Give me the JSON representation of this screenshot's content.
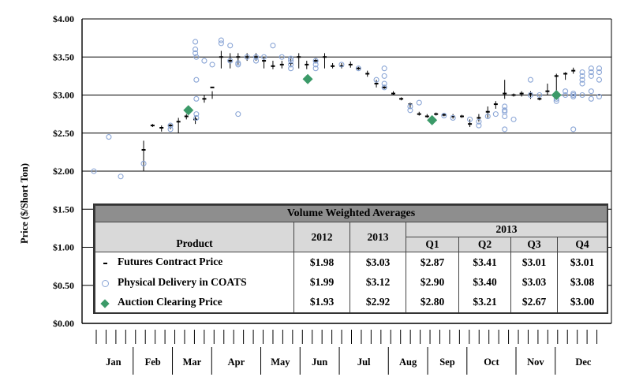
{
  "chart_data": {
    "type": "scatter",
    "title": "",
    "ylabel": "Price ($/Short Ton)",
    "xlabel": "",
    "ylim": [
      0,
      4
    ],
    "y_ticks": [
      "$0.00",
      "$0.50",
      "$1.00",
      "$1.50",
      "$2.00",
      "$2.50",
      "$3.00",
      "$3.50",
      "$4.00"
    ],
    "months": [
      "Jan",
      "Feb",
      "Mar",
      "Apr",
      "May",
      "Jun",
      "Jul",
      "Aug",
      "Sep",
      "Oct",
      "Nov",
      "Dec"
    ],
    "month_week_starts": [
      0,
      4,
      8,
      12,
      17,
      21,
      25,
      30,
      34,
      38,
      43,
      47
    ],
    "weeks": 52,
    "series": [
      {
        "name": "Futures Contract Price",
        "marker": "dash",
        "week": [
          5,
          5.9,
          6.8,
          7.7,
          8.5,
          9.3,
          10.2,
          11.1,
          11.9,
          12.8,
          13.7,
          14.5,
          15.4,
          16.3,
          17.1,
          18,
          18.9,
          19.8,
          20.6,
          21.4,
          22.3,
          23.2,
          24,
          24.9,
          25.8,
          26.6,
          27.5,
          28.4,
          29.2,
          30.1,
          30.9,
          31.8,
          32.7,
          33.5,
          34.4,
          35.2,
          36.1,
          37,
          37.8,
          38.7,
          39.6,
          40.4,
          41.3,
          42.2,
          43,
          43.9,
          44.8,
          45.6,
          46.5,
          47.4,
          48.2
        ],
        "value": [
          2.28,
          2.6,
          2.57,
          2.6,
          2.65,
          2.72,
          2.68,
          2.95,
          3.1,
          3.5,
          3.45,
          3.5,
          3.5,
          3.5,
          3.45,
          3.38,
          3.4,
          3.42,
          3.5,
          3.4,
          3.45,
          3.5,
          3.38,
          3.38,
          3.4,
          3.35,
          3.28,
          3.15,
          3.1,
          3.02,
          2.95,
          2.88,
          2.75,
          2.72,
          2.75,
          2.74,
          2.72,
          2.72,
          2.62,
          2.7,
          2.78,
          2.88,
          3.02,
          3,
          3.02,
          3.02,
          2.95,
          3.05,
          3.25,
          3.28,
          3.32
        ],
        "error_low": [
          2,
          2.58,
          2.52,
          2.55,
          2.5,
          2.68,
          2.62,
          2.9,
          2.95,
          3.35,
          3.35,
          3.4,
          3.45,
          3.45,
          3.35,
          3.34,
          3.35,
          3.38,
          3.35,
          3.34,
          3.42,
          3.35,
          3.35,
          3.35,
          3.36,
          3.33,
          3.24,
          3.1,
          3.08,
          3,
          2.93,
          2.82,
          2.73,
          2.7,
          2.73,
          2.72,
          2.69,
          2.7,
          2.58,
          2.65,
          2.7,
          2.82,
          2.95,
          2.98,
          2.98,
          2.95,
          2.93,
          3,
          3.05,
          3.2,
          3.28
        ],
        "error_high": [
          2.4,
          2.62,
          2.6,
          2.62,
          2.7,
          2.75,
          2.72,
          3,
          3.05,
          3.58,
          3.55,
          3.55,
          3.55,
          3.55,
          3.5,
          3.45,
          3.45,
          3.48,
          3.55,
          3.45,
          3.48,
          3.55,
          3.42,
          3.42,
          3.44,
          3.37,
          3.32,
          3.2,
          3.13,
          3.05,
          2.97,
          2.9,
          2.78,
          2.75,
          2.77,
          2.76,
          2.75,
          2.74,
          2.68,
          2.75,
          2.85,
          2.92,
          3.2,
          3.02,
          3.05,
          3.05,
          2.98,
          3.15,
          3.28,
          3.3,
          3.36
        ]
      },
      {
        "name": "Physical Delivery in COATS",
        "marker": "circle",
        "week": [
          0,
          1.5,
          2.7,
          5,
          7.7,
          7.7,
          10.2,
          10.2,
          10.2,
          10.3,
          10.3,
          10.3,
          10.3,
          10.3,
          11.1,
          11.9,
          12.8,
          12.8,
          13.7,
          13.7,
          14.5,
          14.5,
          14.5,
          15.4,
          16.3,
          16.3,
          17.1,
          18,
          18.9,
          19.8,
          19.8,
          19.8,
          19.8,
          22.3,
          22.3,
          22.3,
          24.9,
          26.6,
          28.4,
          29.2,
          29.2,
          29.2,
          29.2,
          31.8,
          31.8,
          32.7,
          35.2,
          36.1,
          37.8,
          38.7,
          38.7,
          39.6,
          40.4,
          41.3,
          41.3,
          41.3,
          41.3,
          41.3,
          42.2,
          43.9,
          43.9,
          44.8,
          46.5,
          46.5,
          47.4,
          47.4,
          48.2,
          48.2,
          48.2,
          48.2,
          49.1,
          49.1,
          49.1,
          49.1,
          49.1,
          50,
          50,
          50,
          50,
          50,
          50.8,
          50.8,
          50.8,
          50.8
        ],
        "value": [
          2,
          2.45,
          1.93,
          2.1,
          2.55,
          2.6,
          3.7,
          3.6,
          3.55,
          3.2,
          2.95,
          2.75,
          2.7,
          3.5,
          3.45,
          3.4,
          3.72,
          3.68,
          3.45,
          3.65,
          3.42,
          3.4,
          2.75,
          3.5,
          3.5,
          3.45,
          3.5,
          3.65,
          3.5,
          3.45,
          3.48,
          3.4,
          3.35,
          3.45,
          3.4,
          3.35,
          3.4,
          3.35,
          3.2,
          3.35,
          3.25,
          3.15,
          3.1,
          2.85,
          2.8,
          2.9,
          2.73,
          2.7,
          2.68,
          2.65,
          2.6,
          2.72,
          2.75,
          2.85,
          2.8,
          2.78,
          2.72,
          2.55,
          2.68,
          3.2,
          3,
          3,
          2.95,
          2.92,
          3,
          3.05,
          2.55,
          2.98,
          3.02,
          3,
          3.3,
          3.25,
          3.2,
          3.15,
          3,
          3.35,
          3.3,
          3.25,
          3.05,
          2.95,
          3.35,
          3.3,
          3.2,
          2.98
        ],
        "error_low": [],
        "error_high": []
      },
      {
        "name": "Auction Clearing Price",
        "marker": "diamond",
        "week": [
          9.5,
          21.5,
          34,
          46.5
        ],
        "value": [
          2.8,
          3.21,
          2.67,
          3.0
        ],
        "error_low": [],
        "error_high": []
      }
    ],
    "table": {
      "title": "Volume Weighted Averages",
      "header_product": "Product",
      "header_2012": "2012",
      "header_2013": "2013",
      "header_quarter_group": "2013",
      "quarters": [
        "Q1",
        "Q2",
        "Q3",
        "Q4"
      ],
      "rows": [
        {
          "product": "Futures Contract Price",
          "marker": "dash",
          "y2012": "$1.98",
          "y2013": "$3.03",
          "q": [
            "$2.87",
            "$3.41",
            "$3.01",
            "$3.01"
          ]
        },
        {
          "product": "Physical Delivery in COATS",
          "marker": "circle",
          "y2012": "$1.99",
          "y2013": "$3.12",
          "q": [
            "$2.90",
            "$3.40",
            "$3.03",
            "$3.08"
          ]
        },
        {
          "product": "Auction Clearing Price",
          "marker": "diamond",
          "y2012": "$1.93",
          "y2013": "$2.92",
          "q": [
            "$2.80",
            "$3.21",
            "$2.67",
            "$3.00"
          ]
        }
      ]
    }
  },
  "colors": {
    "futures": "#000000",
    "coats": "#8ba6d6",
    "auction": "#3b9a68",
    "table_title_bg": "#8e8e8e",
    "table_header_bg": "#d9d9d9"
  }
}
